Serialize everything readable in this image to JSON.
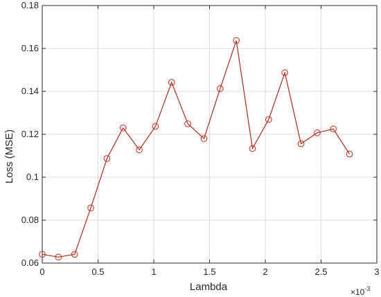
{
  "chart_data": {
    "type": "line",
    "title": "",
    "xlabel": "Lambda",
    "ylabel": "Loss (MSE)",
    "x_exponent_label": "×10",
    "x_exponent_power": "-3",
    "xlim": [
      0,
      3
    ],
    "ylim": [
      0.06,
      0.18
    ],
    "x_ticks": [
      0,
      0.5,
      1,
      1.5,
      2,
      2.5,
      3
    ],
    "x_tick_labels": [
      "0",
      "0.5",
      "1",
      "1.5",
      "2",
      "2.5",
      "3"
    ],
    "y_ticks": [
      0.06,
      0.08,
      0.1,
      0.12,
      0.14,
      0.16,
      0.18
    ],
    "y_tick_labels": [
      "0.06",
      "0.08",
      "0.1",
      "0.12",
      "0.14",
      "0.16",
      "0.18"
    ],
    "grid": true,
    "x": [
      0.0,
      0.145,
      0.29,
      0.435,
      0.58,
      0.725,
      0.87,
      1.015,
      1.16,
      1.305,
      1.45,
      1.595,
      1.74,
      1.885,
      2.03,
      2.175,
      2.32,
      2.465,
      2.61,
      2.755
    ],
    "y": [
      0.0641,
      0.0628,
      0.0641,
      0.0857,
      0.1087,
      0.123,
      0.1128,
      0.1237,
      0.1442,
      0.1249,
      0.118,
      0.1413,
      0.1637,
      0.1134,
      0.1269,
      0.1487,
      0.1156,
      0.1207,
      0.1225,
      0.1108
    ],
    "colors": {
      "line": "#a52a1a",
      "marker": "#c0392b"
    }
  }
}
